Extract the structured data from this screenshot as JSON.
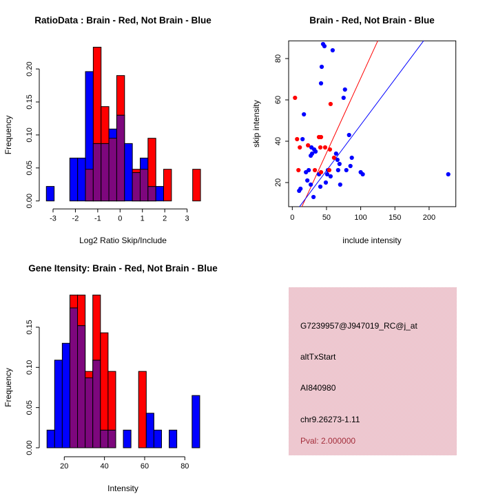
{
  "colors": {
    "blue": "#0000ff",
    "red": "#ff0000",
    "overlap": "#7d077d",
    "axis": "#000000",
    "pval": "#a32d3a",
    "info_bg_light": "#e9d6d8",
    "info_bg_pink": "#f2b9c7",
    "background": "#ffffff"
  },
  "chart_data": [
    {
      "id": "ratio-histogram",
      "type": "bar",
      "subtype": "overlaid-histogram",
      "title": "RatioData : Brain - Red, Not Brain - Blue",
      "xlabel": "Log2 Ratio Skip/Include",
      "ylabel": "Frequency",
      "legend": [
        {
          "name": "Brain",
          "color": "red"
        },
        {
          "name": "Not Brain",
          "color": "blue"
        }
      ],
      "xlim": [
        -3.62,
        3.88
      ],
      "ylim": [
        0,
        0.234
      ],
      "grid": false,
      "xticks": [
        -3,
        -2,
        -1,
        0,
        1,
        2,
        3
      ],
      "xtick_labels": [
        "-3",
        "-2",
        "-1",
        "0",
        "1",
        "2",
        "3"
      ],
      "yticks": [
        0,
        0.05,
        0.1,
        0.15,
        0.2
      ],
      "ytick_labels": [
        "0.00",
        "0.05",
        "0.10",
        "0.15",
        "0.20"
      ],
      "bin_width": 0.35,
      "bars": [
        {
          "x0": -3.3,
          "blue": 0.022,
          "red": 0
        },
        {
          "x0": -2.25,
          "blue": 0.065,
          "red": 0
        },
        {
          "x0": -1.9,
          "blue": 0.065,
          "red": 0
        },
        {
          "x0": -1.55,
          "blue": 0.196,
          "red": 0.048
        },
        {
          "x0": -1.2,
          "blue": 0.087,
          "red": 0.233
        },
        {
          "x0": -0.85,
          "blue": 0.087,
          "red": 0.143
        },
        {
          "x0": -0.5,
          "blue": 0.109,
          "red": 0.095
        },
        {
          "x0": -0.15,
          "blue": 0.13,
          "red": 0.19
        },
        {
          "x0": 0.2,
          "blue": 0.087,
          "red": 0
        },
        {
          "x0": 0.55,
          "blue": 0.043,
          "red": 0.048
        },
        {
          "x0": 0.9,
          "blue": 0.065,
          "red": 0.048
        },
        {
          "x0": 1.25,
          "blue": 0.022,
          "red": 0.095
        },
        {
          "x0": 1.6,
          "blue": 0.022,
          "red": 0
        },
        {
          "x0": 1.95,
          "blue": 0,
          "red": 0.048
        },
        {
          "x0": 3.25,
          "blue": 0,
          "red": 0.048
        }
      ]
    },
    {
      "id": "intensity-scatter",
      "type": "scatter",
      "title": "Brain - Red, Not Brain - Blue",
      "xlabel": "include intensity",
      "ylabel": "skip intensity",
      "xlim": [
        -5,
        239
      ],
      "ylim": [
        8,
        89
      ],
      "grid": false,
      "xticks": [
        0,
        50,
        100,
        150,
        200
      ],
      "xtick_labels": [
        "0",
        "50",
        "100",
        "150",
        "200"
      ],
      "yticks": [
        20,
        40,
        60,
        80
      ],
      "ytick_labels": [
        "20",
        "40",
        "60",
        "80"
      ],
      "blue_points": [
        [
          45,
          87
        ],
        [
          47,
          86
        ],
        [
          59,
          84
        ],
        [
          43,
          76
        ],
        [
          42,
          68
        ],
        [
          77,
          65
        ],
        [
          75,
          61
        ],
        [
          17,
          53
        ],
        [
          83,
          43
        ],
        [
          15,
          41
        ],
        [
          28,
          37
        ],
        [
          32,
          36
        ],
        [
          34,
          35
        ],
        [
          29,
          34
        ],
        [
          27,
          33
        ],
        [
          64,
          34
        ],
        [
          66,
          31
        ],
        [
          69,
          29
        ],
        [
          87,
          32
        ],
        [
          85,
          28
        ],
        [
          56,
          23
        ],
        [
          67,
          26
        ],
        [
          79,
          26
        ],
        [
          100,
          25
        ],
        [
          103,
          24
        ],
        [
          20,
          25
        ],
        [
          24,
          26
        ],
        [
          39,
          24
        ],
        [
          51,
          24
        ],
        [
          52,
          26
        ],
        [
          22,
          21
        ],
        [
          27,
          19
        ],
        [
          12,
          17
        ],
        [
          10,
          16
        ],
        [
          41,
          18
        ],
        [
          31,
          13
        ],
        [
          49,
          20
        ],
        [
          70,
          19
        ],
        [
          228,
          24
        ]
      ],
      "red_points": [
        [
          4,
          61
        ],
        [
          56,
          58
        ],
        [
          39,
          42
        ],
        [
          42,
          42
        ],
        [
          7,
          41
        ],
        [
          23,
          38
        ],
        [
          11,
          37
        ],
        [
          41,
          37
        ],
        [
          48,
          37
        ],
        [
          55,
          36
        ],
        [
          61,
          32
        ],
        [
          9,
          26
        ],
        [
          33,
          26
        ],
        [
          54,
          26
        ],
        [
          42,
          25
        ]
      ],
      "fit_lines": [
        {
          "color": "red",
          "from": [
            14,
            8.3
          ],
          "to": [
            125,
            88.6
          ]
        },
        {
          "color": "blue",
          "from": [
            10.5,
            8.3
          ],
          "to": [
            192,
            88.6
          ]
        }
      ]
    },
    {
      "id": "gene-intensity-histogram",
      "type": "bar",
      "subtype": "overlaid-histogram",
      "title": "Gene Itensity: Brain - Red, Not Brain - Blue",
      "xlabel": "Intensity",
      "ylabel": "Frequency",
      "legend": [
        {
          "name": "Brain",
          "color": "red"
        },
        {
          "name": "Not Brain",
          "color": "blue"
        }
      ],
      "xlim": [
        7.5,
        90.8
      ],
      "ylim": [
        0,
        0.192
      ],
      "grid": false,
      "xticks": [
        20,
        40,
        60,
        80
      ],
      "xtick_labels": [
        "20",
        "40",
        "60",
        "80"
      ],
      "yticks": [
        0,
        0.05,
        0.1,
        0.15
      ],
      "ytick_labels": [
        "0.00",
        "0.05",
        "0.10",
        "0.15"
      ],
      "bin_width": 3.8,
      "bars": [
        {
          "x0": 11.4,
          "blue": 0.022,
          "red": 0
        },
        {
          "x0": 15.2,
          "blue": 0.109,
          "red": 0
        },
        {
          "x0": 19.0,
          "blue": 0.13,
          "red": 0
        },
        {
          "x0": 22.8,
          "blue": 0.174,
          "red": 0.19
        },
        {
          "x0": 26.6,
          "blue": 0.152,
          "red": 0.19
        },
        {
          "x0": 30.4,
          "blue": 0.087,
          "red": 0.095
        },
        {
          "x0": 34.2,
          "blue": 0.109,
          "red": 0.19
        },
        {
          "x0": 38.0,
          "blue": 0.022,
          "red": 0.143
        },
        {
          "x0": 41.8,
          "blue": 0.022,
          "red": 0.095
        },
        {
          "x0": 49.4,
          "blue": 0.022,
          "red": 0
        },
        {
          "x0": 57.0,
          "blue": 0,
          "red": 0.095
        },
        {
          "x0": 60.8,
          "blue": 0.043,
          "red": 0
        },
        {
          "x0": 64.6,
          "blue": 0.022,
          "red": 0
        },
        {
          "x0": 72.2,
          "blue": 0.022,
          "red": 0
        },
        {
          "x0": 83.6,
          "blue": 0.065,
          "red": 0
        }
      ]
    },
    {
      "id": "info-panel",
      "type": "table",
      "lines": [
        "G7239957@J947019_RC@j_at",
        "altTxStart",
        "AI840980",
        "chr9.26273-1.11",
        "Pval: 2.000000"
      ]
    }
  ]
}
